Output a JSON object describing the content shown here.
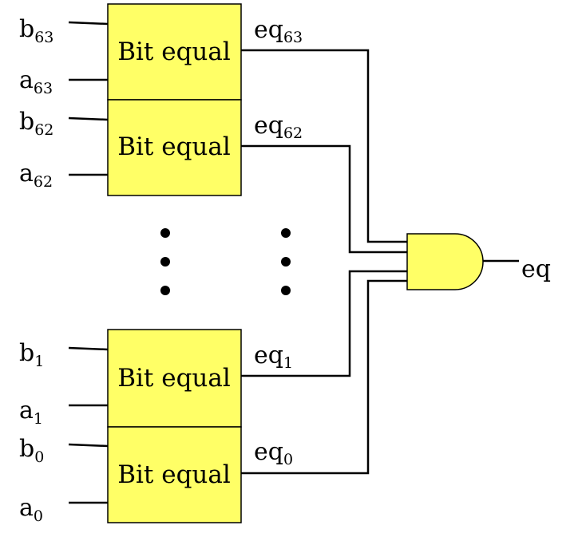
{
  "blocks": [
    {
      "label": "Bit equal",
      "b_base": "b",
      "b_sub": "63",
      "a_base": "a",
      "a_sub": "63",
      "eq_base": "eq",
      "eq_sub": "63"
    },
    {
      "label": "Bit equal",
      "b_base": "b",
      "b_sub": "62",
      "a_base": "a",
      "a_sub": "62",
      "eq_base": "eq",
      "eq_sub": "62"
    },
    {
      "label": "Bit equal",
      "b_base": "b",
      "b_sub": "1",
      "a_base": "a",
      "a_sub": "1",
      "eq_base": "eq",
      "eq_sub": "1"
    },
    {
      "label": "Bit equal",
      "b_base": "b",
      "b_sub": "0",
      "a_base": "a",
      "a_sub": "0",
      "eq_base": "eq",
      "eq_sub": "0"
    }
  ],
  "output_label": "eq",
  "colors": {
    "block_fill": "#ffff66",
    "gate_fill": "#ffff66",
    "line": "#000000"
  }
}
